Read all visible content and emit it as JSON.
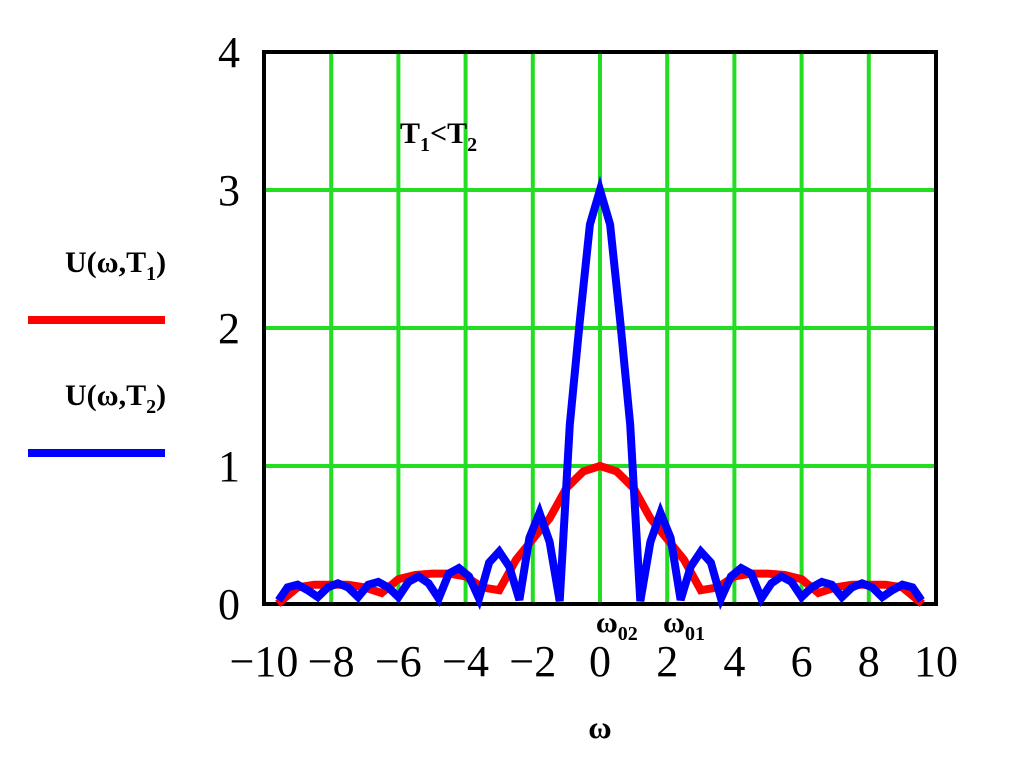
{
  "chart_data": {
    "type": "line",
    "xlabel": "ω",
    "ylabel": "",
    "xlim": [
      -10,
      10
    ],
    "ylim": [
      0,
      4
    ],
    "grid": true,
    "grid_color": "#22dd22",
    "x_ticks": [
      -10,
      -8,
      -6,
      -4,
      -2,
      0,
      2,
      4,
      6,
      8,
      10
    ],
    "y_ticks": [
      0,
      1,
      2,
      3,
      4
    ],
    "x_tick_labels": [
      "−10",
      "−8",
      "−6",
      "−4",
      "−2",
      "0",
      "2",
      "4",
      "6",
      "8",
      "10"
    ],
    "y_tick_labels": [
      "0",
      "1",
      "2",
      "3",
      "4"
    ],
    "annotation": {
      "main": "T",
      "sub1": "1",
      "mid": "<T",
      "sub2": "2"
    },
    "omega_labels": [
      {
        "main": "ω",
        "sub": "02",
        "x": 0.5
      },
      {
        "main": "ω",
        "sub": "01",
        "x": 2.5
      }
    ],
    "legend": {
      "placement": "left",
      "items": [
        {
          "pre": "U(ω,T",
          "sub": "1",
          "post": ")",
          "color": "#ff0000"
        },
        {
          "pre": "U(ω,T",
          "sub": "2",
          "post": ")",
          "color": "#0000ff"
        }
      ]
    },
    "series": [
      {
        "color": "#ff0000",
        "T": 1,
        "x": [
          -9.5,
          -9.0,
          -8.5,
          -8.0,
          -7.5,
          -7.0,
          -6.5,
          -6.0,
          -5.5,
          -5.0,
          -4.5,
          -4.0,
          -3.5,
          -3.0,
          -2.5,
          -2.0,
          -1.5,
          -1.0,
          -0.5,
          0.0,
          0.5,
          1.0,
          1.5,
          2.0,
          2.5,
          3.0,
          3.5,
          4.0,
          4.5,
          5.0,
          5.5,
          6.0,
          6.5,
          7.0,
          7.5,
          8.0,
          8.5,
          9.0,
          9.5
        ],
        "values": [
          0.02,
          0.12,
          0.14,
          0.14,
          0.14,
          0.12,
          0.08,
          0.18,
          0.21,
          0.22,
          0.22,
          0.2,
          0.12,
          0.1,
          0.32,
          0.47,
          0.62,
          0.84,
          0.96,
          1.0,
          0.96,
          0.84,
          0.62,
          0.47,
          0.32,
          0.1,
          0.12,
          0.2,
          0.22,
          0.22,
          0.21,
          0.18,
          0.08,
          0.12,
          0.14,
          0.14,
          0.14,
          0.12,
          0.02
        ]
      },
      {
        "color": "#0000ff",
        "T": 2,
        "x": [
          -9.5,
          -9.3,
          -9.0,
          -8.7,
          -8.4,
          -8.1,
          -7.8,
          -7.5,
          -7.2,
          -6.9,
          -6.6,
          -6.3,
          -6.0,
          -5.7,
          -5.4,
          -5.1,
          -4.8,
          -4.5,
          -4.2,
          -3.9,
          -3.6,
          -3.3,
          -3.0,
          -2.7,
          -2.4,
          -2.1,
          -1.8,
          -1.5,
          -1.2,
          -0.9,
          -0.6,
          -0.3,
          0.0,
          0.3,
          0.6,
          0.9,
          1.2,
          1.5,
          1.8,
          2.1,
          2.4,
          2.7,
          3.0,
          3.3,
          3.6,
          3.9,
          4.2,
          4.5,
          4.8,
          5.1,
          5.4,
          5.7,
          6.0,
          6.3,
          6.6,
          6.9,
          7.2,
          7.5,
          7.8,
          8.1,
          8.4,
          8.7,
          9.0,
          9.3,
          9.5
        ],
        "values": [
          0.05,
          0.12,
          0.14,
          0.1,
          0.05,
          0.12,
          0.15,
          0.12,
          0.05,
          0.14,
          0.16,
          0.12,
          0.05,
          0.16,
          0.2,
          0.15,
          0.04,
          0.22,
          0.26,
          0.2,
          0.04,
          0.3,
          0.38,
          0.27,
          0.03,
          0.48,
          0.66,
          0.45,
          0.02,
          1.3,
          2.05,
          2.75,
          3.0,
          2.75,
          2.05,
          1.3,
          0.02,
          0.45,
          0.66,
          0.48,
          0.03,
          0.27,
          0.38,
          0.3,
          0.04,
          0.2,
          0.26,
          0.22,
          0.04,
          0.15,
          0.2,
          0.16,
          0.05,
          0.12,
          0.16,
          0.14,
          0.05,
          0.12,
          0.15,
          0.12,
          0.05,
          0.1,
          0.14,
          0.12,
          0.05
        ]
      }
    ]
  }
}
